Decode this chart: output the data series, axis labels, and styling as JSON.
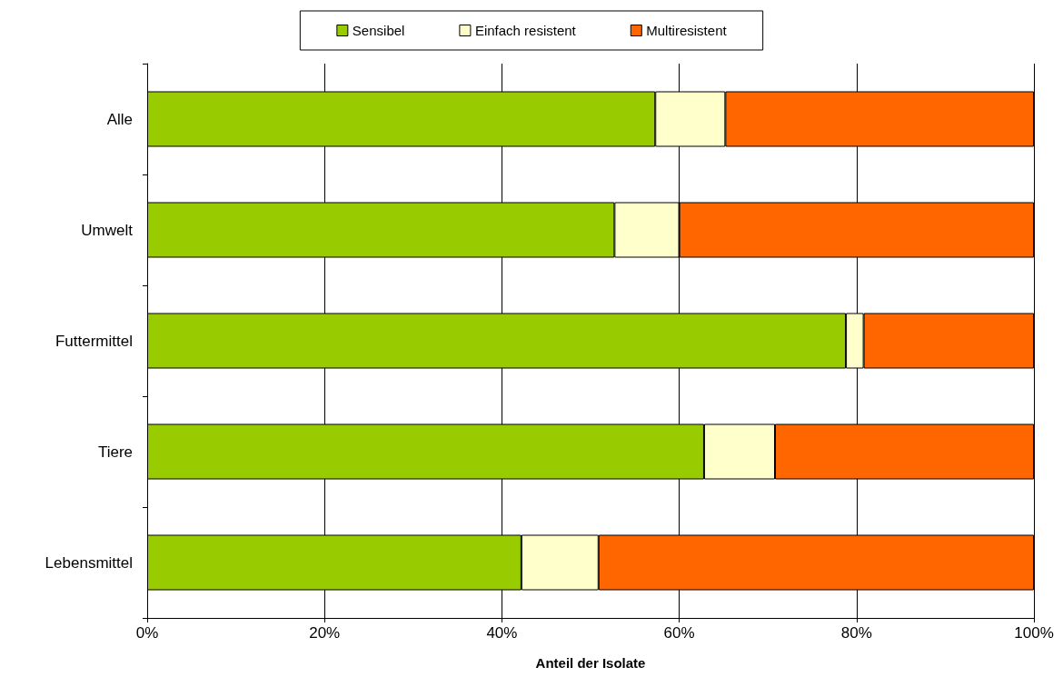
{
  "chart_data": {
    "type": "bar",
    "orientation": "horizontal",
    "stacked": true,
    "xlabel": "Anteil der Isolate",
    "categories": [
      "Alle",
      "Umwelt",
      "Futtermittel",
      "Tiere",
      "Lebensmittel"
    ],
    "series": [
      {
        "name": "Sensibel",
        "color": "#99cc00",
        "values": [
          57.3,
          52.7,
          78.8,
          62.8,
          42.2
        ]
      },
      {
        "name": "Einfach resistent",
        "color": "#ffffcc",
        "values": [
          7.9,
          7.3,
          2.0,
          8.0,
          8.7
        ]
      },
      {
        "name": "Multiresistent",
        "color": "#ff6600",
        "values": [
          34.8,
          40.0,
          19.2,
          29.2,
          49.1
        ]
      }
    ],
    "xlim": [
      0,
      100
    ],
    "xticks": [
      {
        "value": 0,
        "label": "0%"
      },
      {
        "value": 20,
        "label": "20%"
      },
      {
        "value": 40,
        "label": "40%"
      },
      {
        "value": 60,
        "label": "60%"
      },
      {
        "value": 80,
        "label": "80%"
      },
      {
        "value": 100,
        "label": "100%"
      }
    ],
    "grid": "x",
    "legend": "top"
  }
}
